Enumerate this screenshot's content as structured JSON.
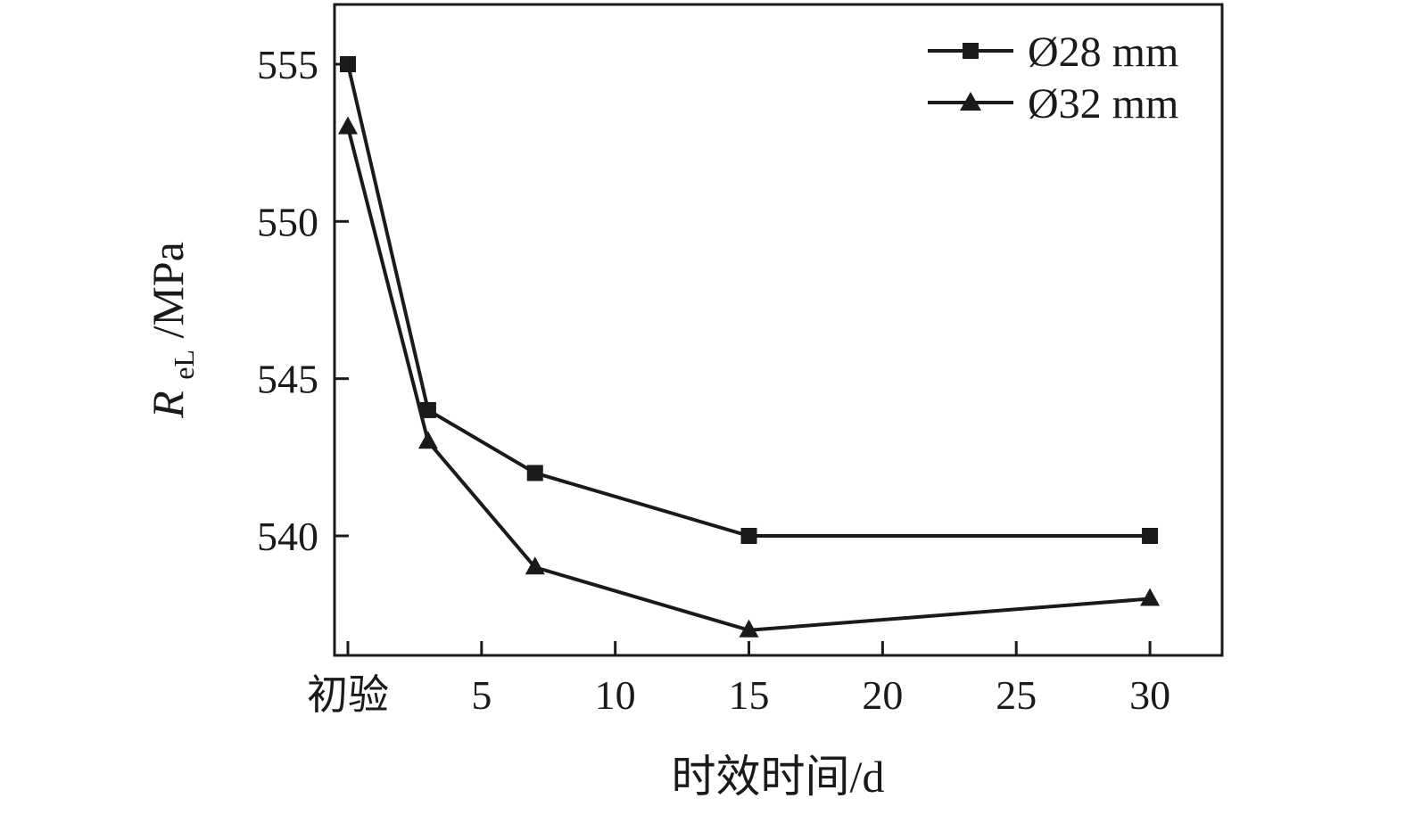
{
  "chart_data": {
    "type": "line",
    "title": "",
    "xlabel": "时效时间/d",
    "ylabel": "R_eL/MPa",
    "ylabel_parts": {
      "main": "R",
      "sub": "eL",
      "rest": "/MPa"
    },
    "series": [
      {
        "name": "Ø28 mm",
        "marker": "square",
        "x": [
          0,
          3,
          7,
          15,
          30
        ],
        "y": [
          555,
          544,
          542,
          540,
          540
        ]
      },
      {
        "name": "Ø32 mm",
        "marker": "triangle",
        "x": [
          0,
          3,
          7,
          15,
          30
        ],
        "y": [
          553,
          543,
          539,
          537,
          538
        ]
      }
    ],
    "x_ticks": {
      "values": [
        0,
        5,
        10,
        15,
        20,
        25,
        30
      ],
      "labels": [
        "初验",
        "5",
        "10",
        "15",
        "20",
        "25",
        "30"
      ]
    },
    "y_ticks": {
      "values": [
        540,
        545,
        550,
        555
      ],
      "labels": [
        "540",
        "545",
        "550",
        "555"
      ]
    },
    "xlim": [
      -0.5,
      32.7
    ],
    "ylim": [
      536.2,
      556.9
    ],
    "grid": false,
    "legend_position": "top-right",
    "line_color": "#1a1a1a",
    "background": "#ffffff"
  }
}
